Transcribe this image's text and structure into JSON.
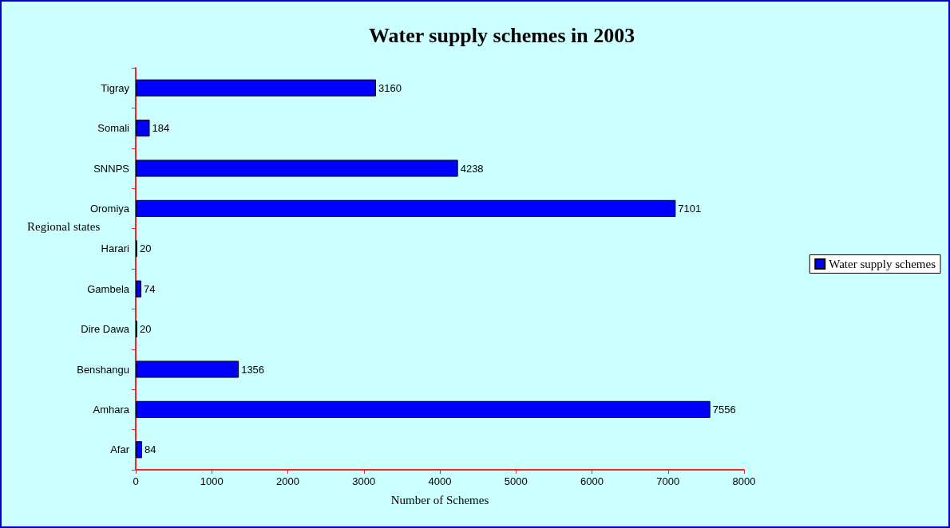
{
  "chart_data": {
    "type": "bar",
    "orientation": "horizontal",
    "title": "Water supply schemes in 2003",
    "xlabel": "Number of Schemes",
    "ylabel": "Regional states",
    "categories": [
      "Tigray",
      "Somali",
      "SNNPS",
      "Oromiya",
      "Harari",
      "Gambela",
      "Dire Dawa",
      "Benshangu",
      "Amhara",
      "Afar"
    ],
    "series": [
      {
        "name": "Water supply schemes",
        "color": "#0000ff",
        "values": [
          3160,
          184,
          4238,
          7101,
          20,
          74,
          20,
          1356,
          7556,
          84
        ]
      }
    ],
    "xlim": [
      0,
      8000
    ],
    "xticks": [
      0,
      1000,
      2000,
      3000,
      4000,
      5000,
      6000,
      7000,
      8000
    ],
    "data_labels": true,
    "legend": "right",
    "grid": false
  }
}
